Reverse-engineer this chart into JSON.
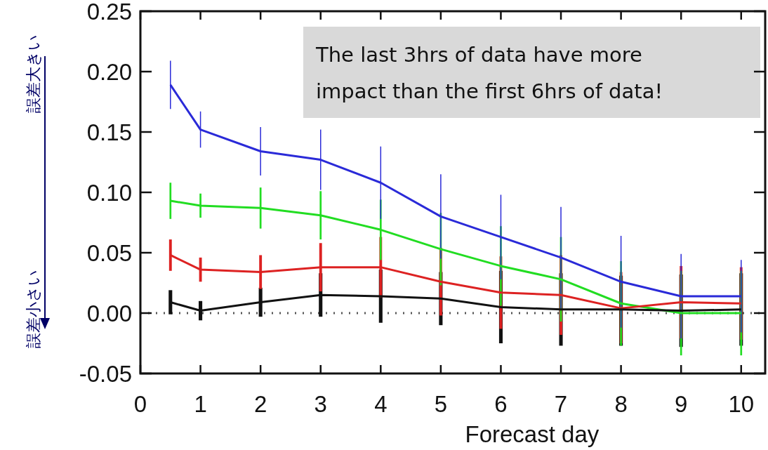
{
  "chart_data": {
    "type": "line",
    "xlabel": "Forecast day",
    "x": [
      0.5,
      1,
      2,
      3,
      4,
      5,
      6,
      7,
      8,
      9,
      10
    ],
    "series": [
      {
        "color": "#2a2ad8",
        "values": [
          0.189,
          0.152,
          0.134,
          0.127,
          0.108,
          0.08,
          0.063,
          0.046,
          0.026,
          0.014,
          0.014
        ],
        "errors": [
          0.02,
          0.015,
          0.02,
          0.025,
          0.03,
          0.035,
          0.035,
          0.042,
          0.038,
          0.035,
          0.03
        ]
      },
      {
        "color": "#22dd22",
        "values": [
          0.093,
          0.089,
          0.087,
          0.081,
          0.069,
          0.053,
          0.039,
          0.028,
          0.008,
          0.0,
          0.0
        ],
        "errors": [
          0.015,
          0.01,
          0.017,
          0.02,
          0.025,
          0.03,
          0.033,
          0.035,
          0.035,
          0.035,
          0.035
        ]
      },
      {
        "color": "#dd2222",
        "values": [
          0.048,
          0.036,
          0.034,
          0.038,
          0.038,
          0.026,
          0.017,
          0.015,
          0.004,
          0.009,
          0.008
        ],
        "errors": [
          0.013,
          0.01,
          0.014,
          0.02,
          0.025,
          0.028,
          0.03,
          0.033,
          [
            -0.025,
            0.034
          ],
          0.03,
          0.03
        ]
      },
      {
        "color": "#111111",
        "values": [
          0.009,
          0.002,
          0.009,
          0.015,
          0.014,
          0.012,
          0.005,
          0.003,
          0.003,
          0.002,
          0.003
        ],
        "errors": [
          0.01,
          0.008,
          0.012,
          0.018,
          0.022,
          0.022,
          0.03,
          0.03,
          [
            -0.027,
            0.031
          ],
          0.03,
          0.03
        ]
      }
    ],
    "xlim": [
      0,
      10.4
    ],
    "ylim": [
      -0.05,
      0.25
    ],
    "xticks": [
      0,
      1,
      2,
      3,
      4,
      5,
      6,
      7,
      8,
      9,
      10
    ],
    "yticks": [
      {
        "value": -0.05,
        "label": "-0.05"
      },
      {
        "value": 0,
        "label": "0.00"
      },
      {
        "value": 0.05,
        "label": "0.05"
      },
      {
        "value": 0.1,
        "label": "0.10"
      },
      {
        "value": 0.15,
        "label": "0.15"
      },
      {
        "value": 0.2,
        "label": "0.20"
      },
      {
        "value": 0.25,
        "label": "0.25"
      }
    ],
    "ref_lines": [
      {
        "axis": "y",
        "value": 0,
        "line_style": "dotted",
        "color": "#555555"
      }
    ],
    "grid": false,
    "marker": "none",
    "line_style": "solid",
    "annotations": [
      "The last 3hrs of data have more impact than the first 6hrs of data!",
      "誤差大きい",
      "誤差小さい"
    ]
  }
}
